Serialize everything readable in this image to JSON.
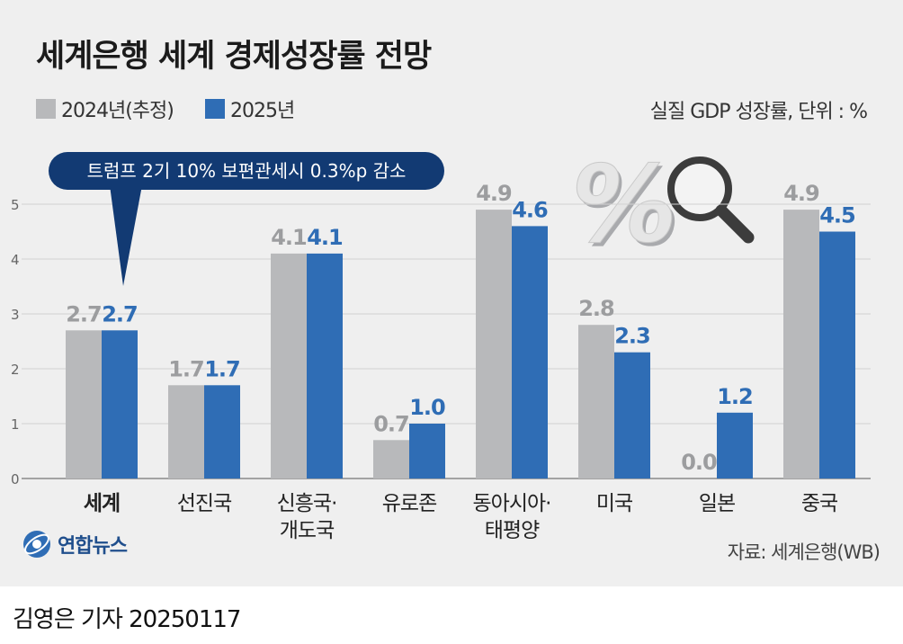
{
  "title": "세계은행 세계 경제성장률 전망",
  "unit_label": "실질 GDP 성장률, 단위 : %",
  "callout": "트럼프 2기 10% 보편관세시 0.3%p 감소",
  "source": "자료: 세계은행(WB)",
  "logo_text": "연합뉴스",
  "credit": "김영은 기자  20250117",
  "colors": {
    "series_2024": "#b8b9bb",
    "series_2025": "#2f6db5",
    "callout_bg": "#123a73"
  },
  "chart_data": {
    "type": "bar",
    "title": "세계은행 세계 경제성장률 전망",
    "ylabel": "",
    "xlabel": "",
    "ylim": [
      0,
      5
    ],
    "yticks": [
      0,
      1,
      2,
      3,
      4,
      5
    ],
    "grid": true,
    "legend_position": "top-left",
    "categories": [
      "세계",
      "선진국",
      "신흥국·\n개도국",
      "유로존",
      "동아시아·\n태평양",
      "미국",
      "일본",
      "중국"
    ],
    "series": [
      {
        "name": "2024년(추정)",
        "values": [
          2.7,
          1.7,
          4.1,
          0.7,
          4.9,
          2.8,
          0.0,
          4.9
        ],
        "labels": [
          "2.7",
          "1.7",
          "4.1",
          "0.7",
          "4.9",
          "2.8",
          "0.0",
          "4.9"
        ]
      },
      {
        "name": "2025년",
        "values": [
          2.7,
          1.7,
          4.1,
          1.0,
          4.6,
          2.3,
          1.2,
          4.5
        ],
        "labels": [
          "2.7",
          "1.7",
          "4.1",
          "1.0",
          "4.6",
          "2.3",
          "1.2",
          "4.5"
        ]
      }
    ]
  }
}
